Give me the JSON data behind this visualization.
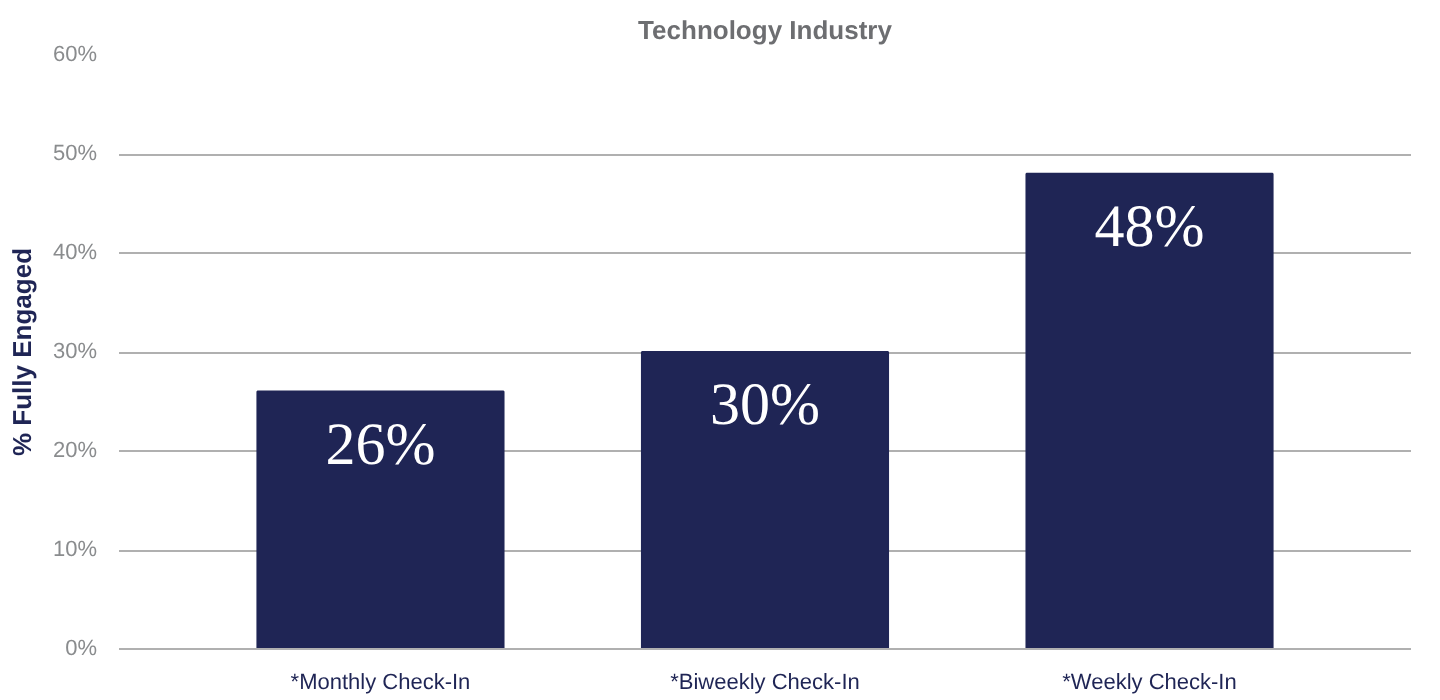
{
  "chart_data": {
    "type": "bar",
    "title": "Technology Industry",
    "ylabel": "% Fully Engaged",
    "categories": [
      "*Monthly Check-In",
      "*Biweekly Check-In",
      "*Weekly Check-In"
    ],
    "values": [
      26,
      30,
      48
    ],
    "color": "#1f2555",
    "value_labels": [
      "26%",
      "30%",
      "48%"
    ],
    "ylim": [
      0,
      60
    ],
    "yticks": [
      {
        "value": 0,
        "label": "0%"
      },
      {
        "value": 10,
        "label": "10%"
      },
      {
        "value": 20,
        "label": "20%"
      },
      {
        "value": 30,
        "label": "30%"
      },
      {
        "value": 40,
        "label": "40%"
      },
      {
        "value": 50,
        "label": "50%"
      },
      {
        "value": 60,
        "label": "60%"
      }
    ],
    "grid": "y"
  }
}
